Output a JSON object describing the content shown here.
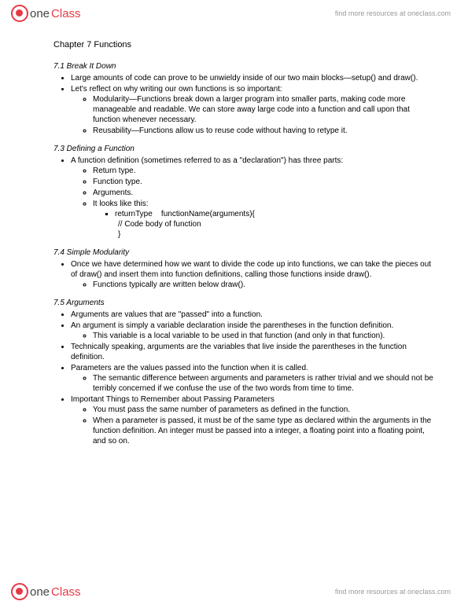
{
  "brand": {
    "part1": "one",
    "part2": "Class",
    "tagline": "find more resources at oneclass.com"
  },
  "doc": {
    "title": "Chapter 7 Functions",
    "s71": {
      "head": "7.1 Break It Down",
      "b1": "Large amounts of code can prove to be unwieldy inside of our two main blocks—setup() and draw().",
      "b2": "Let's reflect on why writing our own functions is so important:",
      "b2a": "Modularity—Functions break down a larger program into smaller parts, making code more manageable and readable. We can store away large code into a function and call upon that function whenever necessary.",
      "b2b": "Reusability—Functions allow us to reuse code without having to retype it."
    },
    "s73": {
      "head": "7.3 Defining a Function",
      "b1": "A function definition (sometimes referred to as a \"declaration\") has three parts:",
      "b1a": "Return type.",
      "b1b": "Function type.",
      "b1c": "Arguments.",
      "b1d": "It looks like this:",
      "code1": "returnType    functionName(arguments){",
      "code2": "// Code body of function",
      "code3": "}"
    },
    "s74": {
      "head": "7.4 Simple Modularity",
      "b1": "Once we have determined how we want to divide the code up into functions, we can take the pieces out of draw() and insert them into function definitions, calling those functions inside draw().",
      "b1a": "Functions typically are written below draw()."
    },
    "s75": {
      "head": "7.5 Arguments",
      "b1": "Arguments are values that are \"passed\" into a function.",
      "b2": "An argument is simply a variable declaration inside the parentheses in the function definition.",
      "b2a": "This variable is a local variable to be used in that function (and only in that function).",
      "b3": "Technically speaking, arguments are the variables that live inside the parentheses in the function definition.",
      "b4": "Parameters are the values passed into the function when it is called.",
      "b4a": "The semantic difference between arguments and parameters is rather trivial and we should not be terribly concerned if we confuse the use of the two words from time to time.",
      "b5": "Important Things to Remember about Passing Parameters",
      "b5a": "You must pass the same number of parameters as defined in the function.",
      "b5b": "When a parameter is passed, it must be of the same type as declared within the arguments in the function definition. An integer must be passed into a integer, a floating point into a floating point, and so on."
    }
  }
}
